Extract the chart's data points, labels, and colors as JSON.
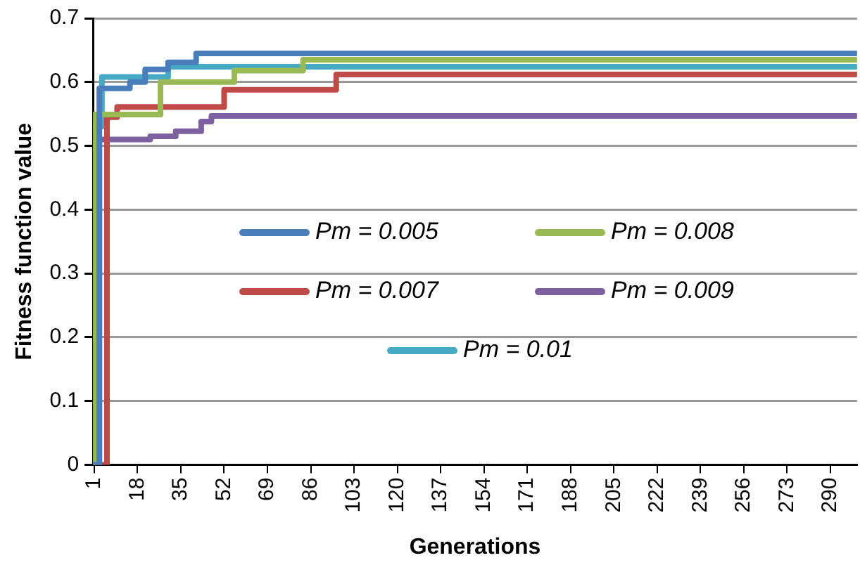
{
  "chart_data": {
    "type": "step",
    "xlabel": "Generations",
    "ylabel": "Fitness function value",
    "xlim": [
      0.5,
      300.5
    ],
    "xticks": [
      1,
      18,
      35,
      52,
      69,
      86,
      103,
      120,
      137,
      154,
      171,
      188,
      205,
      222,
      239,
      256,
      273,
      290
    ],
    "ylim": [
      0,
      0.7
    ],
    "yticks": [
      0,
      0.1,
      0.2,
      0.3,
      0.4,
      0.5,
      0.6,
      0.7
    ],
    "grid": "y",
    "legend": "center",
    "line_style": "solid",
    "marker": "none",
    "series": [
      {
        "name": "Pm = 0.005",
        "color": "#4a7ebb",
        "x": [
          1,
          3,
          3,
          15,
          21,
          30,
          41,
          300
        ],
        "values": [
          0,
          0,
          0.59,
          0.6,
          0.62,
          0.631,
          0.645,
          0.645
        ]
      },
      {
        "name": "Pm = 0.008",
        "color": "#98b954",
        "x": [
          1,
          1,
          27,
          56,
          83,
          300
        ],
        "values": [
          0,
          0.549,
          0.6,
          0.618,
          0.635,
          0.635
        ]
      },
      {
        "name": "Pm = 0.007",
        "color": "#be4b48",
        "x": [
          1,
          6,
          6,
          10,
          52,
          96,
          300
        ],
        "values": [
          0,
          0,
          0.545,
          0.561,
          0.588,
          0.612,
          0.612
        ]
      },
      {
        "name": "Pm = 0.009",
        "color": "#7d60a0",
        "x": [
          1,
          3,
          3,
          23,
          33,
          43,
          47,
          300
        ],
        "values": [
          0,
          0,
          0.51,
          0.515,
          0.523,
          0.538,
          0.547,
          0.547
        ]
      },
      {
        "name": "Pm = 0.01",
        "color": "#46aac5",
        "x": [
          1,
          4,
          30,
          300
        ],
        "values": [
          0.53,
          0.608,
          0.624,
          0.624
        ]
      }
    ]
  }
}
